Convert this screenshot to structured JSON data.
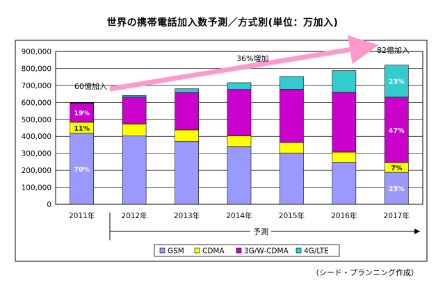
{
  "chart_data": {
    "type": "bar",
    "stacked": true,
    "title": "世界の携帯電話加入数予測／方式別(単位：万加入)",
    "categories": [
      "2011年",
      "2012年",
      "2013年",
      "2014年",
      "2015年",
      "2016年",
      "2017年"
    ],
    "series": [
      {
        "name": "GSM",
        "color": "#9999ff",
        "values": [
          418000,
          402000,
          370000,
          340000,
          302000,
          247000,
          188000
        ]
      },
      {
        "name": "CDMA",
        "color": "#ffff00",
        "values": [
          65000,
          70000,
          68000,
          63000,
          62000,
          60000,
          58000
        ]
      },
      {
        "name": "3G/W-CDMA",
        "color": "#cc00cc",
        "values": [
          113000,
          160000,
          220000,
          273000,
          313000,
          352000,
          385000
        ]
      },
      {
        "name": "4G/LTE",
        "color": "#33cccc",
        "values": [
          3000,
          8000,
          22000,
          40000,
          75000,
          128000,
          189000
        ]
      }
    ],
    "ylim": [
      0,
      900000
    ],
    "yticks": [
      0,
      100000,
      200000,
      300000,
      400000,
      500000,
      600000,
      700000,
      800000,
      900000
    ],
    "ytick_labels": [
      "0",
      "100,000",
      "200,000",
      "300,000",
      "400,000",
      "500,000",
      "600,000",
      "700,000",
      "800,000",
      "900,000"
    ],
    "grid": true,
    "legend": "bottom",
    "data_labels": [
      {
        "category": "2011年",
        "series": "3G/W-CDMA",
        "text": "19%"
      },
      {
        "category": "2011年",
        "series": "CDMA",
        "text": "11%"
      },
      {
        "category": "2011年",
        "series": "GSM",
        "text": "70%"
      },
      {
        "category": "2017年",
        "series": "4G/LTE",
        "text": "23%"
      },
      {
        "category": "2017年",
        "series": "3G/W-CDMA",
        "text": "47%"
      },
      {
        "category": "2017年",
        "series": "CDMA",
        "text": "7%"
      },
      {
        "category": "2017年",
        "series": "GSM",
        "text": "23%"
      }
    ],
    "annotations": {
      "start": "60億加入",
      "growth": "36%増加",
      "end": "82億加入",
      "forecast": "予測"
    }
  },
  "source": "（シード・プランニング作成）"
}
